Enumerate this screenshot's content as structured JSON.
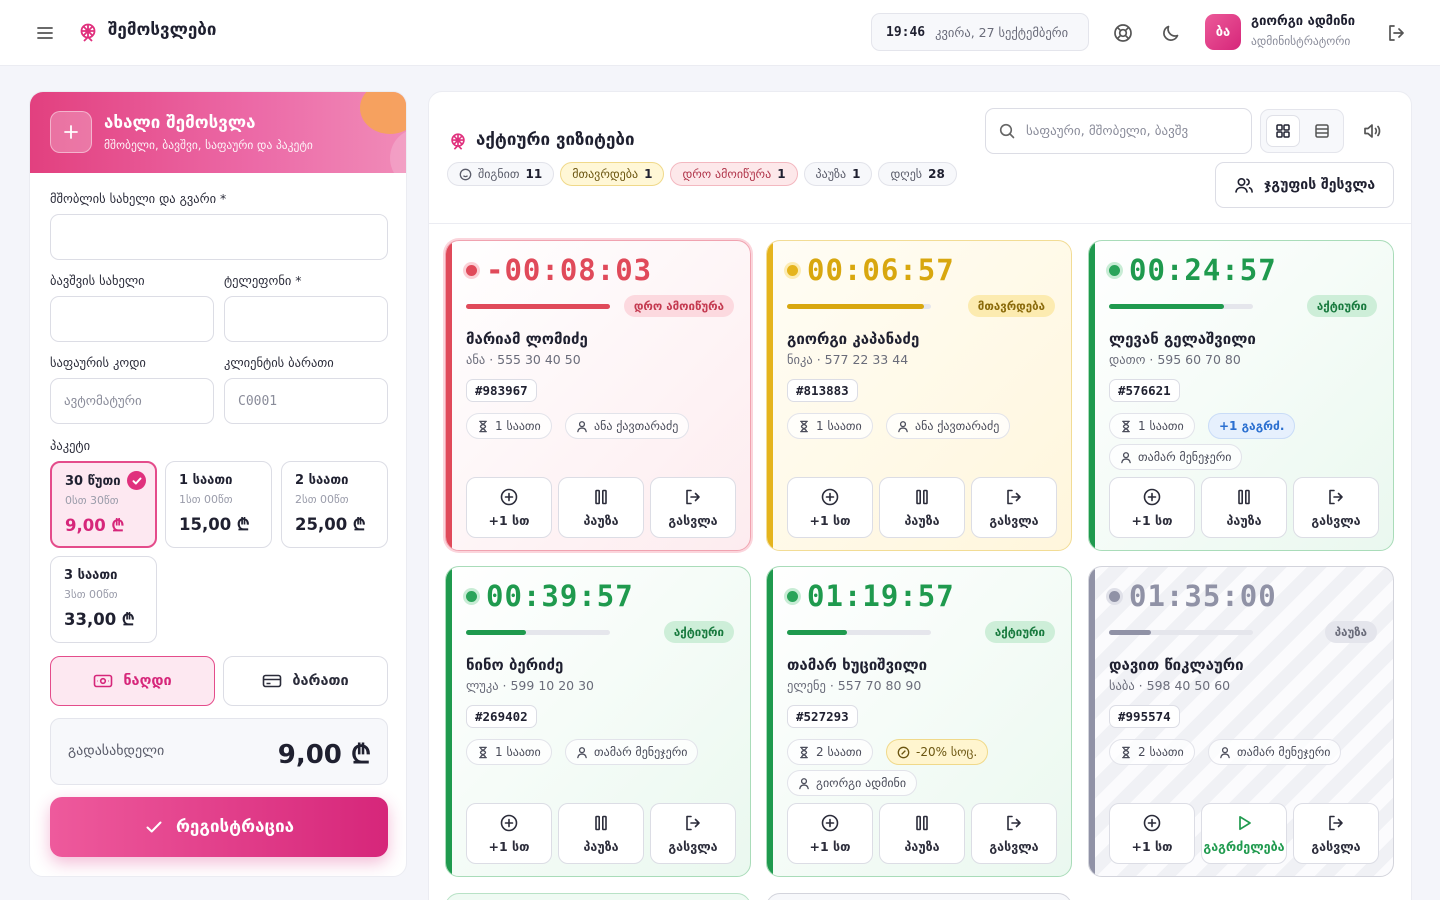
{
  "header": {
    "title": "შემოსვლები",
    "clock_time": "19:46",
    "clock_date": "კვირა, 27 სექტემბერი",
    "avatar_initials": "ბა",
    "user_name": "გიორგი ადმინი",
    "user_role": "ადმინისტრატორი"
  },
  "form": {
    "title": "ახალი შემოსვლა",
    "subtitle": "მშობელი, ბავშვი, საფაური და პაკეტი",
    "parent_label": "მშობლის სახელი და გვარი *",
    "parent_value": "",
    "child_label": "ბავშვის სახელი",
    "child_value": "",
    "phone_label": "ტელეფონი *",
    "phone_value": "",
    "locker_label": "საფაურის კოდი",
    "locker_placeholder": "ავტომატური",
    "card_label": "კლიენტის ბარათი",
    "card_placeholder": "C0001",
    "package_label": "პაკეტი",
    "packages": [
      {
        "name": "30 წუთი",
        "sub": "0სთ 30წთ",
        "price": "9,00 ₾",
        "selected": true
      },
      {
        "name": "1 საათი",
        "sub": "1სთ 00წთ",
        "price": "15,00 ₾",
        "selected": false
      },
      {
        "name": "2 საათი",
        "sub": "2სთ 00წთ",
        "price": "25,00 ₾",
        "selected": false
      },
      {
        "name": "3 საათი",
        "sub": "3სთ 00წთ",
        "price": "33,00 ₾",
        "selected": false
      }
    ],
    "pay_cash": "ნაღდი",
    "pay_card": "ბარათი",
    "total_label": "გადასახდელი",
    "total_value": "9,00 ₾",
    "submit": "რეგისტრაცია"
  },
  "main": {
    "title": "აქტიური ვიზიტები",
    "stats": [
      {
        "label": "შიგნით",
        "count": "11"
      },
      {
        "label": "მთავრდება",
        "count": "1"
      },
      {
        "label": "დრო ამოიწურა",
        "count": "1"
      },
      {
        "label": "პაუზა",
        "count": "1"
      },
      {
        "label": "დღეს",
        "count": "28"
      }
    ],
    "search_placeholder": "საფაური, მშობელი, ბავშვ",
    "group_button": "ჯგუფის შესვლა",
    "actions": {
      "add": "+1 სთ",
      "pause": "პაუზა",
      "exit": "გასვლა",
      "resume": "გაგრძელება"
    },
    "cards": [
      {
        "timer": "-00:08:03",
        "progress": 1.0,
        "status": "დრო ამოიწურა",
        "name": "მარიამ ლომიძე",
        "sub": "ანა · 555 30 40 50",
        "code": "#983967",
        "chips": [
          "1 საათი",
          "ანა ქავთარაძე"
        ],
        "status_color": "#e04a5a"
      },
      {
        "timer": "00:06:57",
        "progress": 0.95,
        "status": "მთავრდება",
        "name": "გიორგი კაპანაძე",
        "sub": "ნიკა · 577 22 33 44",
        "code": "#813883",
        "chips": [
          "1 საათი",
          "ანა ქავთარაძე"
        ],
        "status_color": "#e5b41d"
      },
      {
        "timer": "00:24:57",
        "progress": 0.8,
        "status": "აქტიური",
        "name": "ლევან გელაშვილი",
        "sub": "დათო · 595 60 70 80",
        "code": "#576621",
        "chips": [
          "1 საათი",
          "+1 გაგრძ.",
          "თამარ მენეჯერი"
        ],
        "status_color": "#1f9a4e"
      },
      {
        "timer": "00:39:57",
        "progress": 0.42,
        "status": "აქტიური",
        "name": "ნინო ბერიძე",
        "sub": "ლუკა · 599 10 20 30",
        "code": "#269402",
        "chips": [
          "1 საათი",
          "თამარ მენეჯერი"
        ],
        "status_color": "#1f9a4e"
      },
      {
        "timer": "01:19:57",
        "progress": 0.42,
        "status": "აქტიური",
        "name": "თამარ ხუციშვილი",
        "sub": "ელენე · 557 70 80 90",
        "code": "#527293",
        "chips": [
          "2 საათი",
          "-20% სოც.",
          "გიორგი ადმინი"
        ],
        "status_color": "#1f9a4e"
      },
      {
        "timer": "01:35:00",
        "progress": 0.29,
        "status": "პაუზა",
        "name": "დავით წიკლაური",
        "sub": "საბა · 598 40 50 60",
        "code": "#995574",
        "chips": [
          "2 საათი",
          "თამარ მენეჯერი"
        ],
        "status_color": "#9092a6"
      }
    ]
  }
}
